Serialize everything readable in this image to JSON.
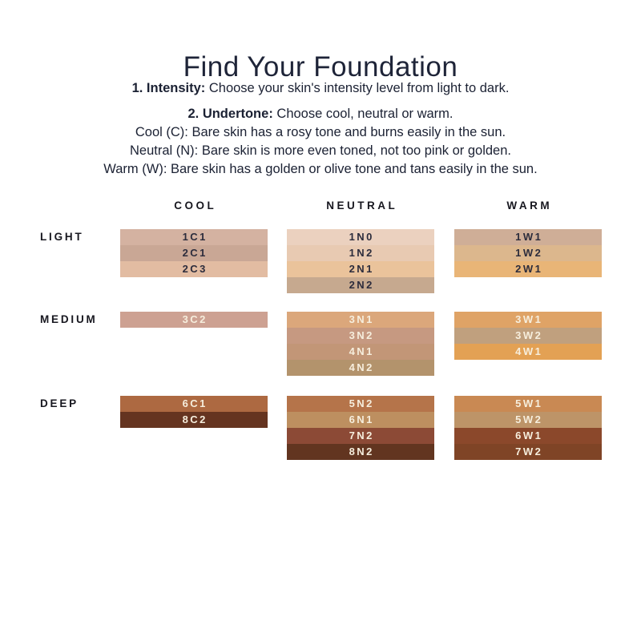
{
  "page": {
    "title": "Find Your Foundation"
  },
  "colors": {
    "background": "#ffffff",
    "heading_text": "#1e2438",
    "body_text": "#1b2133",
    "label_text": "#17171f",
    "swatch_text_dark": "#2c2c3c",
    "swatch_text_light": "#f6eedd"
  },
  "instructions": {
    "step1": {
      "label": "1. Intensity:",
      "text": "Choose your skin's intensity level from light to dark."
    },
    "step2": {
      "label": "2. Undertone:",
      "text": "Choose cool, neutral or warm."
    },
    "undertone_lines": [
      "Cool (C): Bare skin has a rosy tone and burns easily in the sun.",
      "Neutral (N): Bare skin is more even toned, not too pink or golden.",
      "Warm (W): Bare skin has a golden or olive tone and tans easily in the sun."
    ]
  },
  "grid": {
    "columns": [
      {
        "id": "cool",
        "label": "COOL"
      },
      {
        "id": "neutral",
        "label": "NEUTRAL"
      },
      {
        "id": "warm",
        "label": "WARM"
      }
    ],
    "rows": [
      {
        "id": "light",
        "label": "LIGHT",
        "shades": {
          "cool": [
            {
              "code": "1C1",
              "hex": "#d4b2a1",
              "text": "dark"
            },
            {
              "code": "2C1",
              "hex": "#c9a795",
              "text": "dark"
            },
            {
              "code": "2C3",
              "hex": "#e2bca2",
              "text": "dark"
            }
          ],
          "neutral": [
            {
              "code": "1N0",
              "hex": "#ebd1bf",
              "text": "dark"
            },
            {
              "code": "1N2",
              "hex": "#e8cab2",
              "text": "dark"
            },
            {
              "code": "2N1",
              "hex": "#eac39b",
              "text": "dark"
            },
            {
              "code": "2N2",
              "hex": "#c6a98f",
              "text": "dark"
            }
          ],
          "warm": [
            {
              "code": "1W1",
              "hex": "#cfae97",
              "text": "dark"
            },
            {
              "code": "1W2",
              "hex": "#dcb78d",
              "text": "dark"
            },
            {
              "code": "2W1",
              "hex": "#e9b577",
              "text": "dark"
            }
          ]
        }
      },
      {
        "id": "medium",
        "label": "MEDIUM",
        "shades": {
          "cool": [
            {
              "code": "3C2",
              "hex": "#cda192",
              "text": "light"
            }
          ],
          "neutral": [
            {
              "code": "3N1",
              "hex": "#dba77b",
              "text": "light"
            },
            {
              "code": "3N2",
              "hex": "#c69981",
              "text": "light"
            },
            {
              "code": "4N1",
              "hex": "#c29677",
              "text": "light"
            },
            {
              "code": "4N2",
              "hex": "#b3936c",
              "text": "light"
            }
          ],
          "warm": [
            {
              "code": "3W1",
              "hex": "#dfa366",
              "text": "light"
            },
            {
              "code": "3W2",
              "hex": "#c0a07e",
              "text": "light"
            },
            {
              "code": "4W1",
              "hex": "#e3a154",
              "text": "light"
            }
          ]
        }
      },
      {
        "id": "deep",
        "label": "DEEP",
        "shades": {
          "cool": [
            {
              "code": "6C1",
              "hex": "#ad6941",
              "text": "light"
            },
            {
              "code": "8C2",
              "hex": "#653420",
              "text": "light"
            }
          ],
          "neutral": [
            {
              "code": "5N2",
              "hex": "#b5744a",
              "text": "light"
            },
            {
              "code": "6N1",
              "hex": "#bd8f60",
              "text": "light"
            },
            {
              "code": "7N2",
              "hex": "#8c4a36",
              "text": "light"
            },
            {
              "code": "8N2",
              "hex": "#623520",
              "text": "light"
            }
          ],
          "warm": [
            {
              "code": "5W1",
              "hex": "#c98953",
              "text": "light"
            },
            {
              "code": "5W2",
              "hex": "#bd9468",
              "text": "light"
            },
            {
              "code": "6W1",
              "hex": "#8b482b",
              "text": "light"
            },
            {
              "code": "7W2",
              "hex": "#7f4426",
              "text": "light"
            }
          ]
        }
      }
    ]
  }
}
